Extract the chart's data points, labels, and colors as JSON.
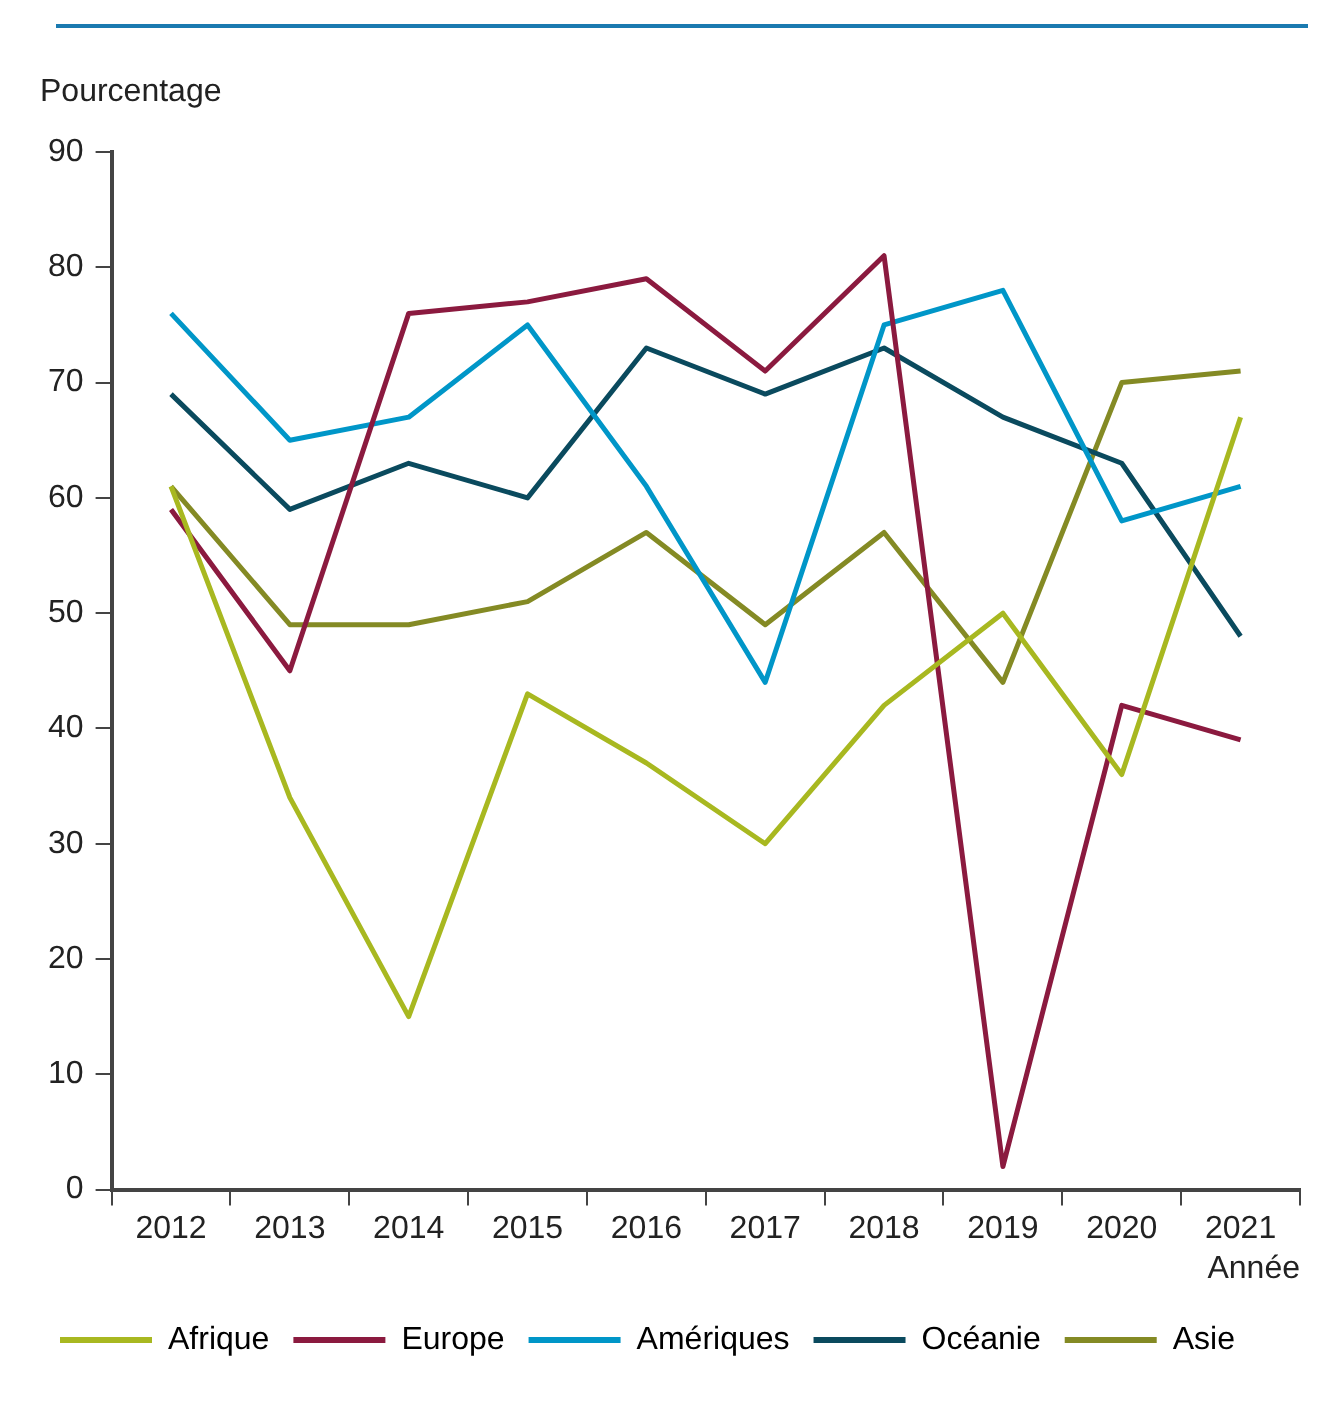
{
  "chart_data": {
    "type": "line",
    "xlabel": "Année",
    "ylabel": "Pourcentage",
    "categories": [
      "2012",
      "2013",
      "2014",
      "2015",
      "2016",
      "2017",
      "2018",
      "2019",
      "2020",
      "2021"
    ],
    "series": [
      {
        "name": "Afrique",
        "color": "#a8b820",
        "values": [
          61,
          34,
          15,
          43,
          37,
          30,
          42,
          50,
          36,
          67
        ]
      },
      {
        "name": "Europe",
        "color": "#8b1a3f",
        "values": [
          59,
          45,
          76,
          77,
          79,
          71,
          81,
          2,
          42,
          39
        ]
      },
      {
        "name": "Amériques",
        "color": "#0096c8",
        "values": [
          76,
          65,
          67,
          75,
          61,
          44,
          75,
          78,
          58,
          61
        ]
      },
      {
        "name": "Océanie",
        "color": "#0a4a5e",
        "values": [
          69,
          59,
          63,
          60,
          73,
          69,
          73,
          67,
          63,
          48
        ]
      },
      {
        "name": "Asie",
        "color": "#848a24",
        "values": [
          61,
          49,
          49,
          51,
          57,
          49,
          57,
          44,
          70,
          71
        ]
      }
    ],
    "ylim": [
      0,
      90
    ],
    "yticks": [
      0,
      10,
      20,
      30,
      40,
      50,
      60,
      70,
      80,
      90
    ],
    "grid": false,
    "legend": "bottom",
    "marker": "none",
    "line_style": "solid"
  }
}
